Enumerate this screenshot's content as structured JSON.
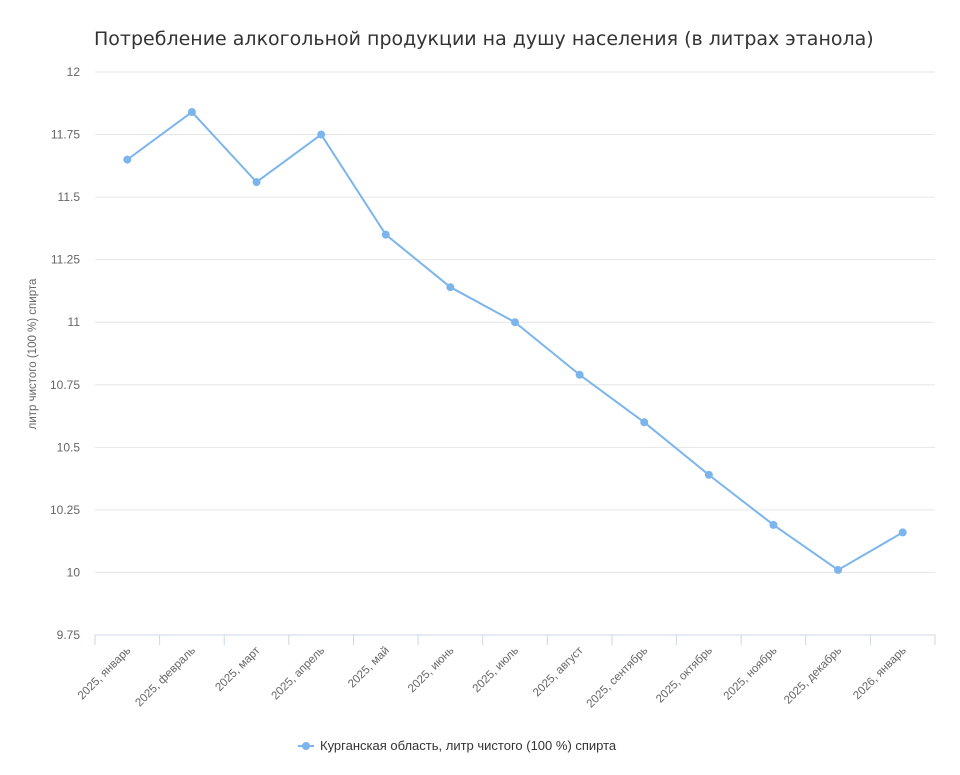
{
  "chart_data": {
    "type": "line",
    "title": "Потребление алкогольной продукции на душу населения (в литрах этанола)",
    "ylabel": "литр чистого (100 %) спирта",
    "xlabel": "",
    "categories": [
      "2025, январь",
      "2025, февраль",
      "2025, март",
      "2025, апрель",
      "2025, май",
      "2025, июнь",
      "2025, июль",
      "2025, август",
      "2025, сентябрь",
      "2025, октябрь",
      "2025, ноябрь",
      "2025, декабрь",
      "2026, январь"
    ],
    "series": [
      {
        "name": "Курганская область, литр чистого (100 %) спирта",
        "values": [
          11.65,
          11.84,
          11.56,
          11.75,
          11.35,
          11.14,
          11.0,
          10.79,
          10.6,
          10.39,
          10.19,
          10.01,
          10.16
        ],
        "color": "#7cb5ec"
      }
    ],
    "ylim": [
      9.75,
      12
    ],
    "yticks": [
      9.75,
      10,
      10.25,
      10.5,
      10.75,
      11,
      11.25,
      11.5,
      11.75,
      12
    ],
    "ytick_labels": [
      "9.75",
      "10",
      "10.25",
      "10.5",
      "10.75",
      "11",
      "11.25",
      "11.5",
      "11.75",
      "12"
    ],
    "grid": true,
    "legend_position": "bottom-center"
  }
}
